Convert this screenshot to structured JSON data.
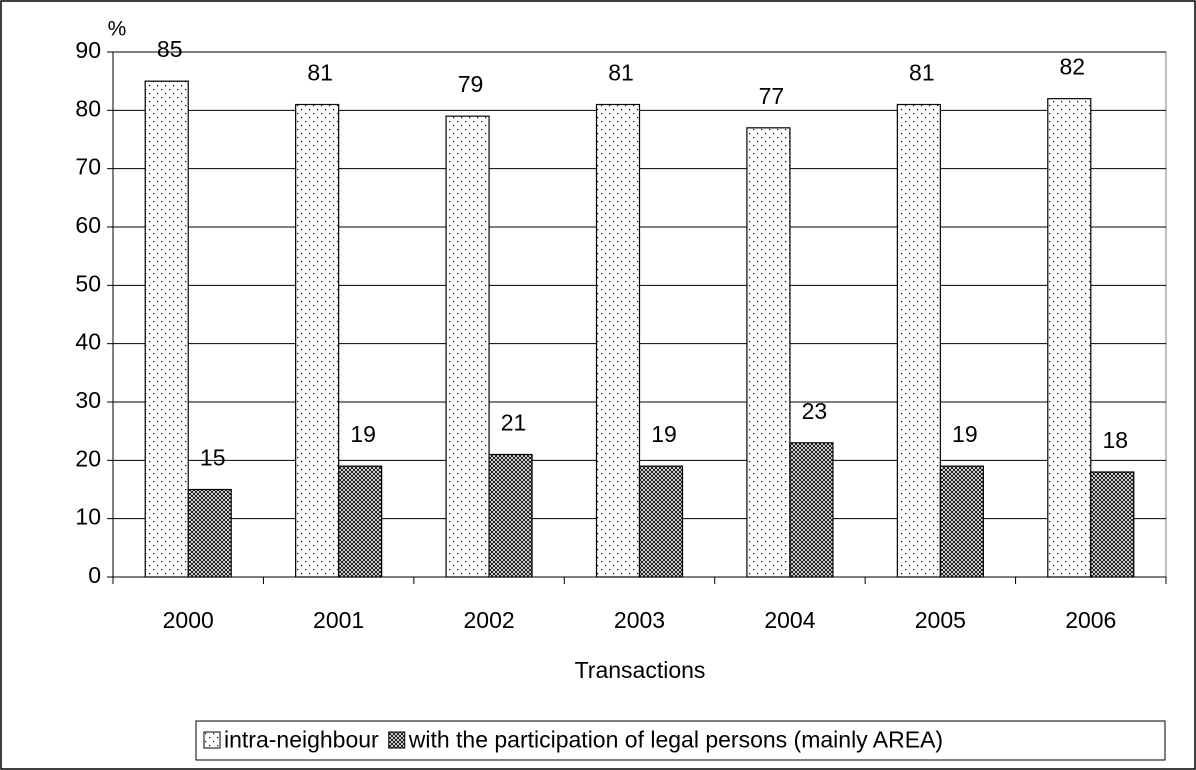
{
  "chart_data": {
    "type": "bar",
    "y_label": "%",
    "x_label": "Transactions",
    "categories": [
      "2000",
      "2001",
      "2002",
      "2003",
      "2004",
      "2005",
      "2006"
    ],
    "series": [
      {
        "name": "intra-neighbour",
        "color": "#000000",
        "pattern": "dots",
        "values": [
          85,
          81,
          79,
          81,
          77,
          81,
          82
        ]
      },
      {
        "name": "with the participation of legal persons (mainly AREA)",
        "color": "#000000",
        "pattern": "crosshatch",
        "values": [
          15,
          19,
          21,
          19,
          23,
          19,
          18
        ]
      }
    ],
    "ylim": [
      0,
      90
    ],
    "yticks": [
      0,
      10,
      20,
      30,
      40,
      50,
      60,
      70,
      80,
      90
    ],
    "grid": true,
    "legend": "bottom"
  }
}
